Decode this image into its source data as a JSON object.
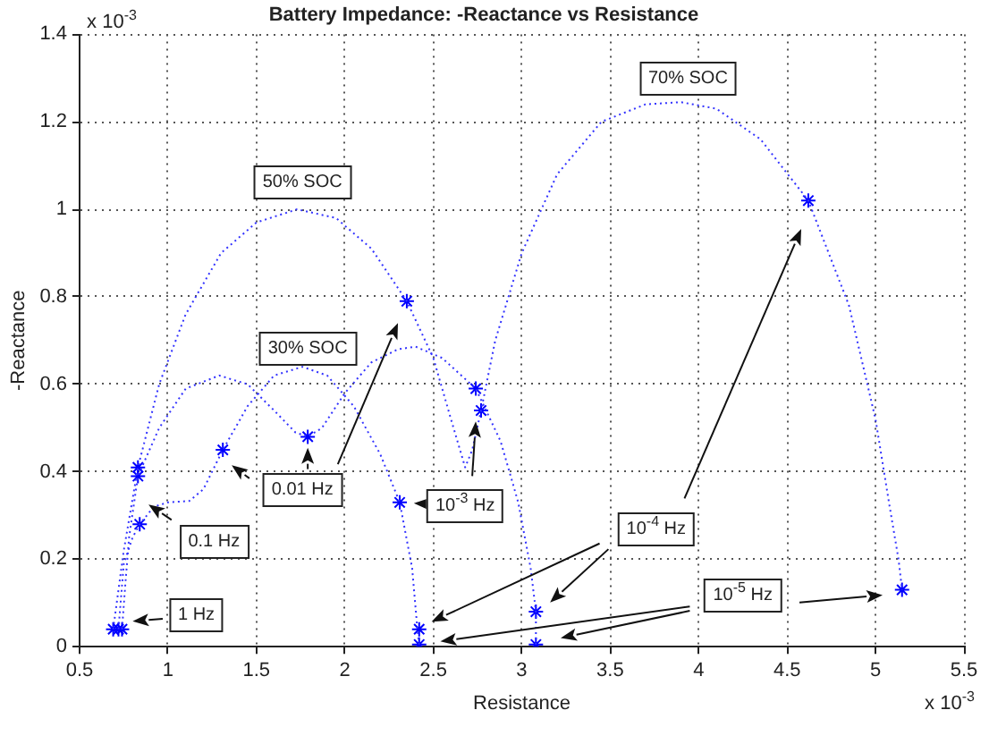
{
  "chart_data": {
    "type": "line",
    "title": "Battery Impedance: -Reactance vs Resistance",
    "xlabel": "Resistance",
    "ylabel": "-Reactance",
    "xlim": [
      0.5,
      5.5
    ],
    "xticks": [
      0.5,
      1,
      1.5,
      2,
      2.5,
      3,
      3.5,
      4,
      4.5,
      5,
      5.5
    ],
    "ylim": [
      0,
      1.4
    ],
    "yticks": [
      0,
      0.2,
      0.4,
      0.6,
      0.8,
      1,
      1.2,
      1.4
    ],
    "grid": true,
    "legend": false,
    "line_style": "dotted",
    "annotations": [
      "70% SOC",
      "50% SOC",
      "30% SOC",
      "1 Hz",
      "0.1 Hz",
      "0.01 Hz",
      "10$^{-3}$ Hz",
      "10$^{-4}$ Hz",
      "10$^{-5}$ Hz",
      "x 10$^{-3}$",
      "x 10$^{-3}$"
    ],
    "series": [
      {
        "marker": "none",
        "color": "#3333ff",
        "x": [
          0.69,
          0.71,
          0.75,
          0.83,
          0.95,
          1.1,
          1.3,
          1.5,
          1.73,
          1.95,
          2.15,
          2.35,
          2.5,
          2.6,
          2.68,
          2.72,
          2.77,
          2.85,
          3.0,
          3.2,
          3.45,
          3.7,
          3.9,
          4.1,
          4.35,
          4.62,
          4.85,
          5.0,
          5.08,
          5.13,
          5.15
        ],
        "values": [
          0.04,
          0.1,
          0.22,
          0.41,
          0.6,
          0.76,
          0.9,
          0.97,
          1.0,
          0.98,
          0.91,
          0.79,
          0.66,
          0.52,
          0.41,
          0.45,
          0.54,
          0.7,
          0.9,
          1.08,
          1.2,
          1.24,
          1.245,
          1.23,
          1.16,
          1.02,
          0.78,
          0.52,
          0.32,
          0.2,
          0.13
        ]
      },
      {
        "marker": "none",
        "color": "#3333ff",
        "x": [
          0.74,
          0.76,
          0.78,
          0.83,
          0.95,
          1.1,
          1.29,
          1.45,
          1.6,
          1.72,
          1.79,
          1.87,
          2.0,
          2.15,
          2.3,
          2.4,
          2.55,
          2.74,
          2.88,
          2.98,
          3.05,
          3.08,
          3.08
        ],
        "values": [
          0.04,
          0.15,
          0.25,
          0.39,
          0.5,
          0.59,
          0.62,
          0.6,
          0.54,
          0.49,
          0.48,
          0.5,
          0.58,
          0.65,
          0.68,
          0.686,
          0.66,
          0.59,
          0.47,
          0.33,
          0.18,
          0.08,
          0.005
        ]
      },
      {
        "marker": "none",
        "color": "#3333ff",
        "x": [
          0.72,
          0.75,
          0.8,
          0.84,
          0.92,
          1.0,
          1.12,
          1.2,
          1.31,
          1.45,
          1.6,
          1.76,
          1.9,
          2.05,
          2.2,
          2.31,
          2.38,
          2.41,
          2.42
        ],
        "values": [
          0.04,
          0.19,
          0.25,
          0.28,
          0.32,
          0.33,
          0.333,
          0.36,
          0.45,
          0.55,
          0.62,
          0.64,
          0.62,
          0.55,
          0.44,
          0.33,
          0.18,
          0.04,
          0.005
        ]
      },
      {
        "type": "scatter",
        "marker": "cross",
        "color": "#0000ff",
        "x": [
          0.69,
          0.83,
          2.35,
          2.77,
          4.62,
          5.15
        ],
        "values": [
          0.04,
          0.41,
          0.79,
          0.54,
          1.02,
          0.13
        ]
      },
      {
        "type": "scatter",
        "marker": "cross",
        "color": "#0000ff",
        "x": [
          0.74,
          0.83,
          1.79,
          2.74,
          3.08,
          3.08
        ],
        "values": [
          0.04,
          0.39,
          0.48,
          0.59,
          0.08,
          0.005
        ]
      },
      {
        "type": "scatter",
        "marker": "cross",
        "color": "#0000ff",
        "x": [
          0.72,
          0.84,
          1.31,
          2.31,
          2.42,
          2.42
        ],
        "values": [
          0.04,
          0.28,
          0.45,
          0.33,
          0.04,
          0.005
        ]
      }
    ]
  }
}
